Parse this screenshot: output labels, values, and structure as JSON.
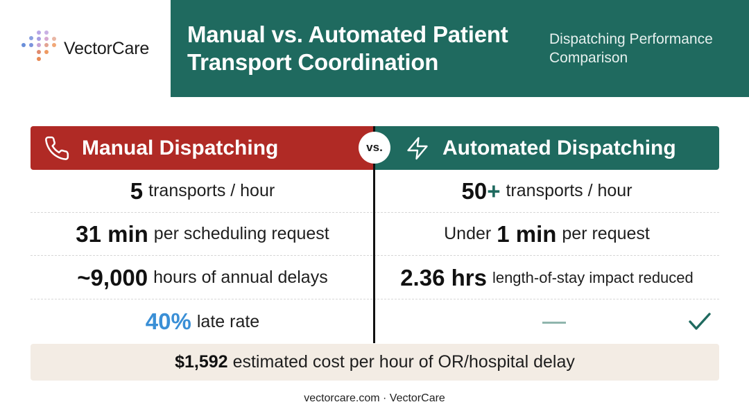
{
  "brand": {
    "name": "VectorCare"
  },
  "header": {
    "title": "Manual vs. Automated Patient Transport Coordination",
    "subtitle": "Dispatching Performance Comparison"
  },
  "columns": {
    "manual": {
      "label": "Manual Dispatching",
      "icon": "phone-icon",
      "color": "#b02a25"
    },
    "vs": "vs.",
    "automated": {
      "label": "Automated Dispatching",
      "icon": "lightning-icon",
      "color": "#1f6a5f"
    }
  },
  "rows": [
    {
      "manual": {
        "value": "5",
        "text": "transports / hour"
      },
      "automated": {
        "value": "50",
        "suffix": "+",
        "text": "transports / hour"
      }
    },
    {
      "manual": {
        "value": "31 min",
        "text": "per scheduling request"
      },
      "automated": {
        "prefix": "Under",
        "value": "1 min",
        "text": "per request"
      }
    },
    {
      "manual": {
        "value": "~9,000",
        "text": "hours of annual delays"
      },
      "automated": {
        "value": "2.36 hrs",
        "text": "length-of-stay impact reduced"
      }
    },
    {
      "manual": {
        "value": "40%",
        "text": "late rate",
        "accent": "#3a8fd6"
      },
      "automated": {
        "icons": [
          "dash-icon",
          "checkmark-icon"
        ]
      }
    }
  ],
  "cost": {
    "amount": "$1,592",
    "text": "estimated cost per hour of OR/hospital delay"
  },
  "footer": "vectorcare.com · VectorCare"
}
